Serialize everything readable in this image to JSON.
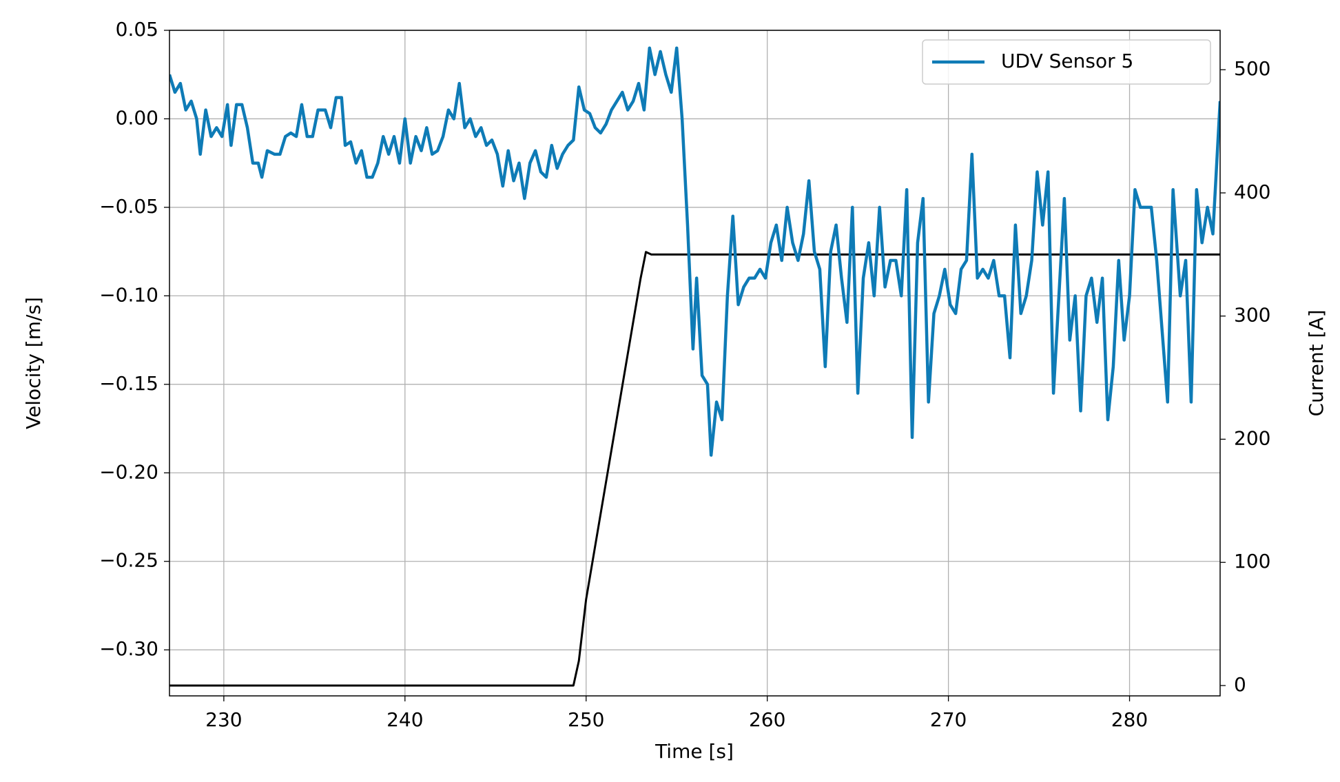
{
  "chart_data": {
    "type": "line",
    "x_label": "Time [s]",
    "y_label": "Velocity [m/s]",
    "y2_label": "Current [A]",
    "xlim": [
      227,
      285
    ],
    "xticks": [
      230,
      240,
      250,
      260,
      270,
      280
    ],
    "ylim": [
      -0.326,
      0.05
    ],
    "yticks": [
      {
        "value": -0.3,
        "label": "−0.30"
      },
      {
        "value": -0.25,
        "label": "−0.25"
      },
      {
        "value": -0.2,
        "label": "−0.20"
      },
      {
        "value": -0.15,
        "label": "−0.15"
      },
      {
        "value": -0.1,
        "label": "−0.10"
      },
      {
        "value": -0.05,
        "label": "−0.05"
      },
      {
        "value": 0,
        "label": "0.00"
      },
      {
        "value": 0.05,
        "label": "0.05"
      }
    ],
    "y2lim": [
      -8.4,
      532
    ],
    "y2ticks": [
      0,
      100,
      200,
      300,
      400,
      500
    ],
    "grid": true,
    "legend": "upper right",
    "series": [
      {
        "name": "UDV Sensor 5",
        "color": "#0e7bb6",
        "x": [
          227.0,
          227.3,
          227.6,
          227.9,
          228.2,
          228.5,
          228.7,
          229.0,
          229.3,
          229.6,
          229.9,
          230.2,
          230.4,
          230.7,
          231.0,
          231.3,
          231.6,
          231.9,
          232.1,
          232.4,
          232.8,
          233.1,
          233.4,
          233.7,
          234.0,
          234.3,
          234.6,
          234.9,
          235.2,
          235.6,
          235.9,
          236.2,
          236.5,
          236.7,
          237.0,
          237.3,
          237.6,
          237.9,
          238.2,
          238.5,
          238.8,
          239.1,
          239.4,
          239.7,
          240.0,
          240.3,
          240.6,
          240.9,
          241.2,
          241.5,
          241.8,
          242.1,
          242.4,
          242.7,
          243.0,
          243.3,
          243.6,
          243.9,
          244.2,
          244.5,
          244.8,
          245.1,
          245.4,
          245.7,
          246.0,
          246.3,
          246.6,
          246.9,
          247.2,
          247.5,
          247.8,
          248.1,
          248.4,
          248.7,
          249.0,
          249.3,
          249.6,
          249.9,
          250.2,
          250.5,
          250.8,
          251.1,
          251.4,
          251.7,
          252.0,
          252.3,
          252.6,
          252.9,
          253.2,
          253.5,
          253.8,
          254.1,
          254.4,
          254.7,
          255.0,
          255.3,
          255.6,
          255.9,
          256.1,
          256.4,
          256.7,
          256.9,
          257.2,
          257.5,
          257.8,
          258.1,
          258.4,
          258.7,
          259.0,
          259.3,
          259.6,
          259.9,
          260.2,
          260.5,
          260.8,
          261.1,
          261.4,
          261.7,
          262.0,
          262.3,
          262.6,
          262.9,
          263.2,
          263.5,
          263.8,
          264.1,
          264.4,
          264.7,
          265.0,
          265.3,
          265.6,
          265.9,
          266.2,
          266.5,
          266.8,
          267.1,
          267.4,
          267.7,
          268.0,
          268.3,
          268.6,
          268.9,
          269.2,
          269.5,
          269.8,
          270.1,
          270.4,
          270.7,
          271.0,
          271.3,
          271.6,
          271.9,
          272.2,
          272.5,
          272.8,
          273.1,
          273.4,
          273.7,
          274.0,
          274.3,
          274.6,
          274.9,
          275.2,
          275.5,
          275.8,
          276.1,
          276.4,
          276.7,
          277.0,
          277.3,
          277.6,
          277.9,
          278.2,
          278.5,
          278.8,
          279.1,
          279.4,
          279.7,
          280.0,
          280.3,
          280.6,
          280.9,
          281.2,
          281.5,
          281.8,
          282.1,
          282.4,
          282.8,
          283.1,
          283.4,
          283.7,
          284.0,
          284.3,
          284.6,
          285.0
        ],
        "values": [
          0.025,
          0.015,
          0.02,
          0.005,
          0.01,
          0.0,
          -0.02,
          0.005,
          -0.01,
          -0.005,
          -0.01,
          0.008,
          -0.015,
          0.008,
          0.008,
          -0.005,
          -0.025,
          -0.025,
          -0.033,
          -0.018,
          -0.02,
          -0.02,
          -0.01,
          -0.008,
          -0.01,
          0.008,
          -0.01,
          -0.01,
          0.005,
          0.005,
          -0.005,
          0.012,
          0.012,
          -0.015,
          -0.013,
          -0.025,
          -0.018,
          -0.033,
          -0.033,
          -0.025,
          -0.01,
          -0.02,
          -0.01,
          -0.025,
          0.0,
          -0.025,
          -0.01,
          -0.018,
          -0.005,
          -0.02,
          -0.018,
          -0.01,
          0.005,
          0.0,
          0.02,
          -0.005,
          0.0,
          -0.01,
          -0.005,
          -0.015,
          -0.012,
          -0.02,
          -0.038,
          -0.018,
          -0.035,
          -0.025,
          -0.045,
          -0.025,
          -0.018,
          -0.03,
          -0.033,
          -0.015,
          -0.028,
          -0.02,
          -0.015,
          -0.012,
          0.018,
          0.005,
          0.003,
          -0.005,
          -0.008,
          -0.003,
          0.005,
          0.01,
          0.015,
          0.005,
          0.01,
          0.02,
          0.005,
          0.04,
          0.025,
          0.038,
          0.025,
          0.015,
          0.04,
          0.0,
          -0.06,
          -0.13,
          -0.09,
          -0.145,
          -0.15,
          -0.19,
          -0.16,
          -0.17,
          -0.1,
          -0.055,
          -0.105,
          -0.095,
          -0.09,
          -0.09,
          -0.085,
          -0.09,
          -0.07,
          -0.06,
          -0.08,
          -0.05,
          -0.07,
          -0.08,
          -0.065,
          -0.035,
          -0.075,
          -0.085,
          -0.14,
          -0.075,
          -0.06,
          -0.09,
          -0.115,
          -0.05,
          -0.155,
          -0.09,
          -0.07,
          -0.1,
          -0.05,
          -0.095,
          -0.08,
          -0.08,
          -0.1,
          -0.04,
          -0.18,
          -0.07,
          -0.045,
          -0.16,
          -0.11,
          -0.1,
          -0.085,
          -0.105,
          -0.11,
          -0.085,
          -0.08,
          -0.02,
          -0.09,
          -0.085,
          -0.09,
          -0.08,
          -0.1,
          -0.1,
          -0.135,
          -0.06,
          -0.11,
          -0.1,
          -0.08,
          -0.03,
          -0.06,
          -0.03,
          -0.155,
          -0.1,
          -0.045,
          -0.125,
          -0.1,
          -0.165,
          -0.1,
          -0.09,
          -0.115,
          -0.09,
          -0.17,
          -0.14,
          -0.08,
          -0.125,
          -0.1,
          -0.04,
          -0.05,
          -0.05,
          -0.05,
          -0.08,
          -0.12,
          -0.16,
          -0.04,
          -0.1,
          -0.08,
          -0.16,
          -0.04,
          -0.07,
          -0.05,
          -0.065,
          0.01
        ]
      },
      {
        "color": "#000000",
        "axis": "y2",
        "x": [
          227,
          249.3,
          249.6,
          250.0,
          253.0,
          253.3,
          253.6,
          285
        ],
        "values": [
          0,
          0,
          20,
          70,
          330,
          352,
          350,
          350
        ]
      }
    ]
  }
}
